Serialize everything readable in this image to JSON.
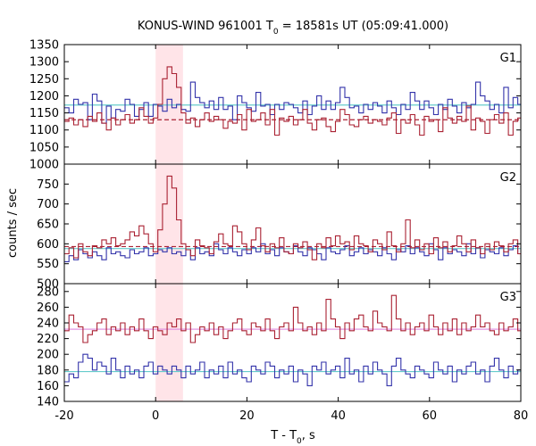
{
  "chart_data": {
    "type": "line",
    "title": "KONUS-WIND 961001 T",
    "title_sub": "0",
    "title_rest": " = 18581s UT (05:09:41.000)",
    "xlabel_main": "T - T",
    "xlabel_sub": "0",
    "xlabel_rest": ", s",
    "ylabel": "counts / sec",
    "xlim": [
      -20,
      80
    ],
    "x_ticks": [
      -20,
      0,
      20,
      40,
      60,
      80
    ],
    "bin_width": 1.024,
    "highlight_interval": [
      0,
      6
    ],
    "panels": [
      {
        "name": "G1",
        "ylim": [
          1000,
          1350
        ],
        "y_ticks": [
          1000,
          1050,
          1100,
          1150,
          1200,
          1250,
          1300,
          1350
        ],
        "background": [
          {
            "color": "#66cccc",
            "level": 1173
          },
          {
            "color": "#aa2233",
            "level": 1130,
            "dashed": true
          }
        ],
        "series": [
          {
            "color": "#3333aa",
            "values": [
              1165,
              1150,
              1190,
              1175,
              1180,
              1130,
              1205,
              1185,
              1120,
              1170,
              1135,
              1160,
              1155,
              1190,
              1175,
              1140,
              1160,
              1180,
              1140,
              1175,
              1170,
              1155,
              1190,
              1165,
              1175,
              1160,
              1155,
              1240,
              1195,
              1180,
              1165,
              1185,
              1160,
              1195,
              1160,
              1170,
              1130,
              1200,
              1180,
              1165,
              1155,
              1210,
              1170,
              1175,
              1145,
              1175,
              1160,
              1180,
              1175,
              1165,
              1150,
              1185,
              1145,
              1170,
              1200,
              1160,
              1185,
              1160,
              1180,
              1225,
              1195,
              1165,
              1170,
              1150,
              1175,
              1160,
              1180,
              1170,
              1150,
              1185,
              1165,
              1145,
              1175,
              1160,
              1210,
              1185,
              1160,
              1185,
              1165,
              1145,
              1175,
              1160,
              1190,
              1170,
              1150,
              1180,
              1165,
              1175,
              1240,
              1200,
              1185,
              1160,
              1175,
              1150,
              1225,
              1165,
              1195,
              1175,
              1155,
              1210
            ]
          },
          {
            "color": "#aa2233",
            "values": [
              1125,
              1135,
              1115,
              1130,
              1110,
              1140,
              1125,
              1150,
              1120,
              1100,
              1135,
              1115,
              1130,
              1145,
              1120,
              1130,
              1165,
              1140,
              1120,
              1135,
              1175,
              1250,
              1285,
              1265,
              1225,
              1150,
              1120,
              1135,
              1110,
              1130,
              1150,
              1125,
              1140,
              1130,
              1105,
              1125,
              1120,
              1145,
              1100,
              1160,
              1125,
              1130,
              1150,
              1115,
              1160,
              1085,
              1135,
              1125,
              1140,
              1115,
              1130,
              1160,
              1120,
              1100,
              1130,
              1135,
              1110,
              1095,
              1125,
              1160,
              1145,
              1115,
              1110,
              1130,
              1140,
              1120,
              1130,
              1125,
              1115,
              1135,
              1150,
              1090,
              1130,
              1120,
              1145,
              1115,
              1085,
              1140,
              1125,
              1130,
              1095,
              1165,
              1135,
              1120,
              1140,
              1125,
              1170,
              1100,
              1135,
              1125,
              1090,
              1130,
              1145,
              1120,
              1150,
              1085,
              1125,
              1135,
              1100,
              1130
            ]
          }
        ]
      },
      {
        "name": "G2",
        "ylim": [
          500,
          800
        ],
        "y_ticks": [
          500,
          550,
          600,
          650,
          700,
          750
        ],
        "background": [
          {
            "color": "#66cccc",
            "level": 588
          },
          {
            "color": "#aa2233",
            "level": 593,
            "dashed": true
          }
        ],
        "series": [
          {
            "color": "#3333aa",
            "values": [
              555,
              570,
              560,
              585,
              575,
              565,
              580,
              570,
              560,
              590,
              575,
              580,
              570,
              565,
              585,
              575,
              580,
              590,
              570,
              575,
              585,
              580,
              590,
              575,
              580,
              570,
              585,
              560,
              590,
              575,
              580,
              570,
              600,
              585,
              575,
              590,
              580,
              570,
              585,
              575,
              590,
              580,
              600,
              575,
              585,
              570,
              590,
              580,
              575,
              595,
              580,
              570,
              590,
              585,
              575,
              560,
              590,
              580,
              575,
              585,
              595,
              570,
              580,
              590,
              575,
              585,
              580,
              570,
              590,
              575,
              560,
              585,
              580,
              595,
              575,
              590,
              580,
              570,
              600,
              585,
              560,
              590,
              575,
              585,
              580,
              570,
              600,
              575,
              590,
              565,
              585,
              580,
              575,
              590,
              570,
              585,
              595,
              575,
              580,
              565
            ]
          },
          {
            "color": "#aa2233",
            "values": [
              575,
              590,
              565,
              600,
              580,
              570,
              595,
              590,
              610,
              600,
              615,
              595,
              600,
              610,
              630,
              620,
              645,
              625,
              600,
              580,
              635,
              700,
              770,
              740,
              660,
              600,
              585,
              570,
              610,
              595,
              590,
              575,
              605,
              625,
              600,
              595,
              645,
              630,
              600,
              585,
              610,
              640,
              595,
              580,
              600,
              590,
              615,
              580,
              575,
              600,
              590,
              605,
              585,
              560,
              600,
              590,
              615,
              595,
              620,
              600,
              605,
              585,
              620,
              600,
              595,
              580,
              610,
              600,
              585,
              630,
              595,
              580,
              600,
              660,
              590,
              610,
              585,
              600,
              575,
              615,
              590,
              605,
              580,
              595,
              620,
              600,
              580,
              610,
              590,
              575,
              600,
              585,
              605,
              595,
              580,
              600,
              610,
              575,
              590,
              600
            ]
          }
        ]
      },
      {
        "name": "G3",
        "ylim": [
          140,
          290
        ],
        "y_ticks": [
          140,
          160,
          180,
          200,
          220,
          240,
          260,
          280
        ],
        "background": [
          {
            "color": "#66cccc",
            "level": 178
          },
          {
            "color": "#dd88dd",
            "level": 232
          }
        ],
        "series": [
          {
            "color": "#3333aa",
            "values": [
              165,
              175,
              170,
              190,
              200,
              195,
              180,
              190,
              185,
              175,
              195,
              180,
              170,
              185,
              175,
              180,
              170,
              185,
              190,
              175,
              185,
              180,
              175,
              185,
              180,
              170,
              185,
              175,
              180,
              190,
              170,
              180,
              175,
              185,
              170,
              190,
              175,
              180,
              170,
              165,
              185,
              180,
              175,
              190,
              185,
              170,
              180,
              175,
              185,
              165,
              180,
              175,
              160,
              185,
              180,
              190,
              175,
              180,
              185,
              170,
              195,
              175,
              180,
              165,
              185,
              175,
              190,
              180,
              175,
              160,
              185,
              195,
              180,
              175,
              170,
              185,
              180,
              175,
              170,
              190,
              180,
              175,
              185,
              165,
              180,
              175,
              185,
              190,
              175,
              180,
              165,
              185,
              195,
              180,
              170,
              185,
              175,
              180,
              190,
              195
            ]
          },
          {
            "color": "#aa2233",
            "values": [
              230,
              250,
              240,
              235,
              215,
              225,
              230,
              240,
              245,
              225,
              235,
              230,
              240,
              225,
              235,
              230,
              245,
              230,
              220,
              235,
              230,
              225,
              240,
              235,
              245,
              230,
              240,
              215,
              225,
              235,
              230,
              240,
              225,
              235,
              220,
              230,
              240,
              245,
              230,
              225,
              240,
              235,
              230,
              245,
              230,
              220,
              235,
              240,
              230,
              260,
              240,
              230,
              235,
              225,
              240,
              230,
              270,
              245,
              235,
              220,
              240,
              230,
              245,
              250,
              235,
              230,
              255,
              240,
              235,
              230,
              275,
              245,
              230,
              240,
              225,
              235,
              240,
              230,
              250,
              235,
              225,
              240,
              230,
              245,
              225,
              240,
              230,
              235,
              250,
              235,
              240,
              230,
              225,
              240,
              230,
              235,
              245,
              230,
              225,
              240
            ]
          }
        ]
      }
    ]
  }
}
